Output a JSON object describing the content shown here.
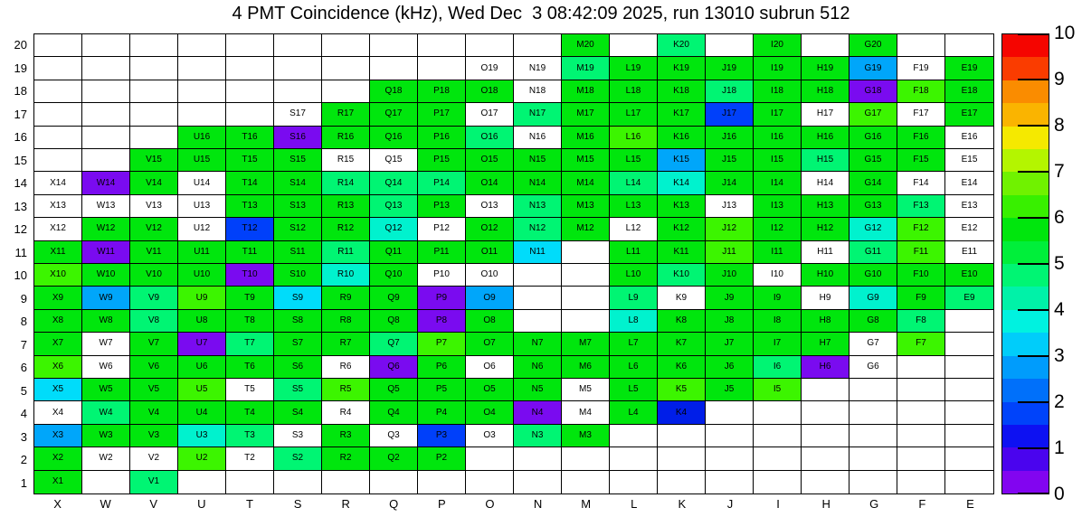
{
  "title": "4 PMT Coincidence (kHz), Wed Dec  3 08:42:09 2025, run 13010 subrun 512",
  "axes": {
    "x_labels": [
      "X",
      "W",
      "V",
      "U",
      "T",
      "S",
      "R",
      "Q",
      "P",
      "O",
      "N",
      "M",
      "L",
      "K",
      "J",
      "I",
      "H",
      "G",
      "F",
      "E"
    ],
    "y_labels": [
      "20",
      "19",
      "18",
      "17",
      "16",
      "15",
      "14",
      "13",
      "12",
      "11",
      "10",
      "9",
      "8",
      "7",
      "6",
      "5",
      "4",
      "3",
      "2",
      "1"
    ]
  },
  "chart_data": {
    "type": "heatmap",
    "title": "4 PMT Coincidence (kHz), Wed Dec  3 08:42:09 2025, run 13010 subrun 512",
    "unit": "kHz",
    "value_range": [
      0,
      10
    ],
    "columns": [
      "X",
      "W",
      "V",
      "U",
      "T",
      "S",
      "R",
      "Q",
      "P",
      "O",
      "N",
      "M",
      "L",
      "K",
      "J",
      "I",
      "H",
      "G",
      "F",
      "E"
    ],
    "row_numbers": [
      20,
      19,
      18,
      17,
      16,
      15,
      14,
      13,
      12,
      11,
      10,
      9,
      8,
      7,
      6,
      5,
      4,
      3,
      2,
      1
    ],
    "palette": {
      "g": "#00e60d",
      "gb": "#3cf500",
      "gs": "#00f573",
      "gt": "#00f2ce",
      "c": "#00dcfa",
      "lb": "#00a6fa",
      "b": "#0040fa",
      "db": "#001ee8",
      "p": "#7a0bf0",
      "w": "#ffffff"
    },
    "class_approx_values": {
      "g": 5.5,
      "gb": 6.3,
      "gs": 4.6,
      "gt": 3.8,
      "c": 3.3,
      "lb": 2.8,
      "b": 1.8,
      "db": 1.3,
      "p": 0.3,
      "w": null
    },
    "cells": [
      [
        "",
        "",
        "",
        "",
        "",
        "",
        "",
        "",
        "",
        "",
        "",
        "M20|g",
        "",
        "K20|gs",
        "",
        "I20|g",
        "",
        "G20|g",
        "",
        ""
      ],
      [
        "",
        "",
        "",
        "",
        "",
        "",
        "",
        "",
        "",
        "O19|w",
        "N19|w",
        "M19|gs",
        "L19|g",
        "K19|g",
        "J19|g",
        "I19|g",
        "H19|g",
        "G19|lb",
        "F19|w",
        "E19|g"
      ],
      [
        "",
        "",
        "",
        "",
        "",
        "",
        "",
        "Q18|g",
        "P18|g",
        "O18|g",
        "N18|w",
        "M18|g",
        "L18|g",
        "K18|g",
        "J18|gs",
        "I18|g",
        "H18|g",
        "G18|p",
        "F18|gb",
        "E18|g"
      ],
      [
        "",
        "",
        "",
        "",
        "",
        "S17|w",
        "R17|g",
        "Q17|g",
        "P17|g",
        "O17|w",
        "N17|gs",
        "M17|g",
        "L17|g",
        "K17|g",
        "J17|b",
        "I17|g",
        "H17|w",
        "G17|gb",
        "F17|w",
        "E17|g"
      ],
      [
        "",
        "",
        "",
        "U16|g",
        "T16|g",
        "S16|p",
        "R16|g",
        "Q16|g",
        "P16|g",
        "O16|gs",
        "N16|w",
        "M16|g",
        "L16|gb",
        "K16|g",
        "J16|g",
        "I16|g",
        "H16|g",
        "G16|g",
        "F16|g",
        "E16|w"
      ],
      [
        "",
        "",
        "V15|g",
        "U15|g",
        "T15|g",
        "S15|g",
        "R15|w",
        "Q15|w",
        "P15|g",
        "O15|g",
        "N15|g",
        "M15|g",
        "L15|g",
        "K15|lb",
        "J15|g",
        "I15|g",
        "H15|gs",
        "G15|g",
        "F15|g",
        "E15|w"
      ],
      [
        "X14|w",
        "W14|p",
        "V14|g",
        "U14|w",
        "T14|g",
        "S14|g",
        "R14|gs",
        "Q14|gs",
        "P14|gs",
        "O14|g",
        "N14|g",
        "M14|g",
        "L14|gs",
        "K14|gt",
        "J14|g",
        "I14|g",
        "H14|w",
        "G14|g",
        "F14|w",
        "E14|w"
      ],
      [
        "X13|w",
        "W13|w",
        "V13|w",
        "U13|w",
        "T13|g",
        "S13|g",
        "R13|g",
        "Q13|gs",
        "P13|g",
        "O13|w",
        "N13|gs",
        "M13|g",
        "L13|g",
        "K13|g",
        "J13|w",
        "I13|g",
        "H13|g",
        "G13|g",
        "F13|gs",
        "E13|w"
      ],
      [
        "X12|w",
        "W12|g",
        "V12|g",
        "U12|w",
        "T12|b",
        "S12|g",
        "R12|g",
        "Q12|gt",
        "P12|w",
        "O12|g",
        "N12|gs",
        "M12|g",
        "L12|w",
        "K12|g",
        "J12|gb",
        "I12|g",
        "H12|g",
        "G12|gt",
        "F12|gb",
        "E12|w"
      ],
      [
        "X11|g",
        "W11|p",
        "V11|g",
        "U11|g",
        "T11|g",
        "S11|g",
        "R11|gs",
        "Q11|g",
        "P11|g",
        "O11|g",
        "N11|c",
        "",
        "L11|g",
        "K11|g",
        "J11|gb",
        "I11|g",
        "H11|w",
        "G11|gs",
        "F11|gb",
        "E11|w"
      ],
      [
        "X10|gb",
        "W10|g",
        "V10|g",
        "U10|g",
        "T10|p",
        "S10|g",
        "R10|gt",
        "Q10|g",
        "P10|w",
        "O10|w",
        "",
        "",
        "L10|g",
        "K10|gs",
        "J10|g",
        "I10|w",
        "H10|g",
        "G10|g",
        "F10|g",
        "E10|g"
      ],
      [
        "X9|g",
        "W9|lb",
        "V9|gs",
        "U9|gb",
        "T9|g",
        "S9|c",
        "R9|g",
        "Q9|g",
        "P9|p",
        "O9|lb",
        "",
        "",
        "L9|gs",
        "K9|w",
        "J9|g",
        "I9|g",
        "H9|w",
        "G9|gt",
        "F9|g",
        "E9|gs"
      ],
      [
        "X8|g",
        "W8|g",
        "V8|gs",
        "U8|g",
        "T8|g",
        "S8|g",
        "R8|g",
        "Q8|g",
        "P8|p",
        "O8|g",
        "",
        "",
        "L8|gt",
        "K8|g",
        "J8|g",
        "I8|g",
        "H8|g",
        "G8|g",
        "F8|gs",
        ""
      ],
      [
        "X7|g",
        "W7|w",
        "V7|g",
        "U7|p",
        "T7|gs",
        "S7|g",
        "R7|g",
        "Q7|gs",
        "P7|gb",
        "O7|g",
        "N7|g",
        "M7|g",
        "L7|g",
        "K7|g",
        "J7|g",
        "I7|g",
        "H7|g",
        "G7|w",
        "F7|gb",
        ""
      ],
      [
        "X6|gb",
        "W6|w",
        "V6|g",
        "U6|g",
        "T6|g",
        "S6|g",
        "R6|w",
        "Q6|p",
        "P6|g",
        "O6|w",
        "N6|g",
        "M6|g",
        "L6|g",
        "K6|g",
        "J6|g",
        "I6|gs",
        "H6|p",
        "G6|w",
        "",
        ""
      ],
      [
        "X5|c",
        "W5|g",
        "V5|g",
        "U5|gb",
        "T5|w",
        "S5|gs",
        "R5|gb",
        "Q5|g",
        "P5|g",
        "O5|g",
        "N5|g",
        "M5|w",
        "L5|g",
        "K5|gb",
        "J5|g",
        "I5|gb",
        "",
        "",
        "",
        ""
      ],
      [
        "X4|w",
        "W4|gs",
        "V4|g",
        "U4|g",
        "T4|g",
        "S4|g",
        "R4|w",
        "Q4|g",
        "P4|g",
        "O4|g",
        "N4|p",
        "M4|w",
        "L4|g",
        "K4|db",
        "",
        "",
        "",
        "",
        "",
        ""
      ],
      [
        "X3|lb",
        "W3|g",
        "V3|g",
        "U3|gt",
        "T3|gs",
        "S3|w",
        "R3|g",
        "Q3|w",
        "P3|b",
        "O3|w",
        "N3|gs",
        "M3|g",
        "",
        "",
        "",
        "",
        "",
        "",
        "",
        ""
      ],
      [
        "X2|g",
        "W2|w",
        "V2|w",
        "U2|gb",
        "T2|w",
        "S2|gs",
        "R2|g",
        "Q2|g",
        "P2|g",
        "",
        "",
        "",
        "",
        "",
        "",
        "",
        "",
        "",
        "",
        ""
      ],
      [
        "X1|g",
        "",
        "V1|gs",
        "",
        "",
        "",
        "",
        "",
        "",
        "",
        "",
        "",
        "",
        "",
        "",
        "",
        "",
        "",
        "",
        ""
      ]
    ]
  },
  "colorbar": {
    "tick_labels": [
      "0",
      "1",
      "2",
      "3",
      "4",
      "5",
      "6",
      "7",
      "8",
      "9",
      "10"
    ],
    "band_colors_bottom_to_top": [
      "#8205f0",
      "#4a04ee",
      "#0d11f2",
      "#0043fa",
      "#0070fa",
      "#009cfc",
      "#00cdfa",
      "#00f2e0",
      "#00f2a8",
      "#00f573",
      "#00ef3a",
      "#00e60d",
      "#38f000",
      "#70f200",
      "#b4f500",
      "#f5e900",
      "#fab400",
      "#fa8c00",
      "#fa3c00",
      "#f50500"
    ]
  }
}
